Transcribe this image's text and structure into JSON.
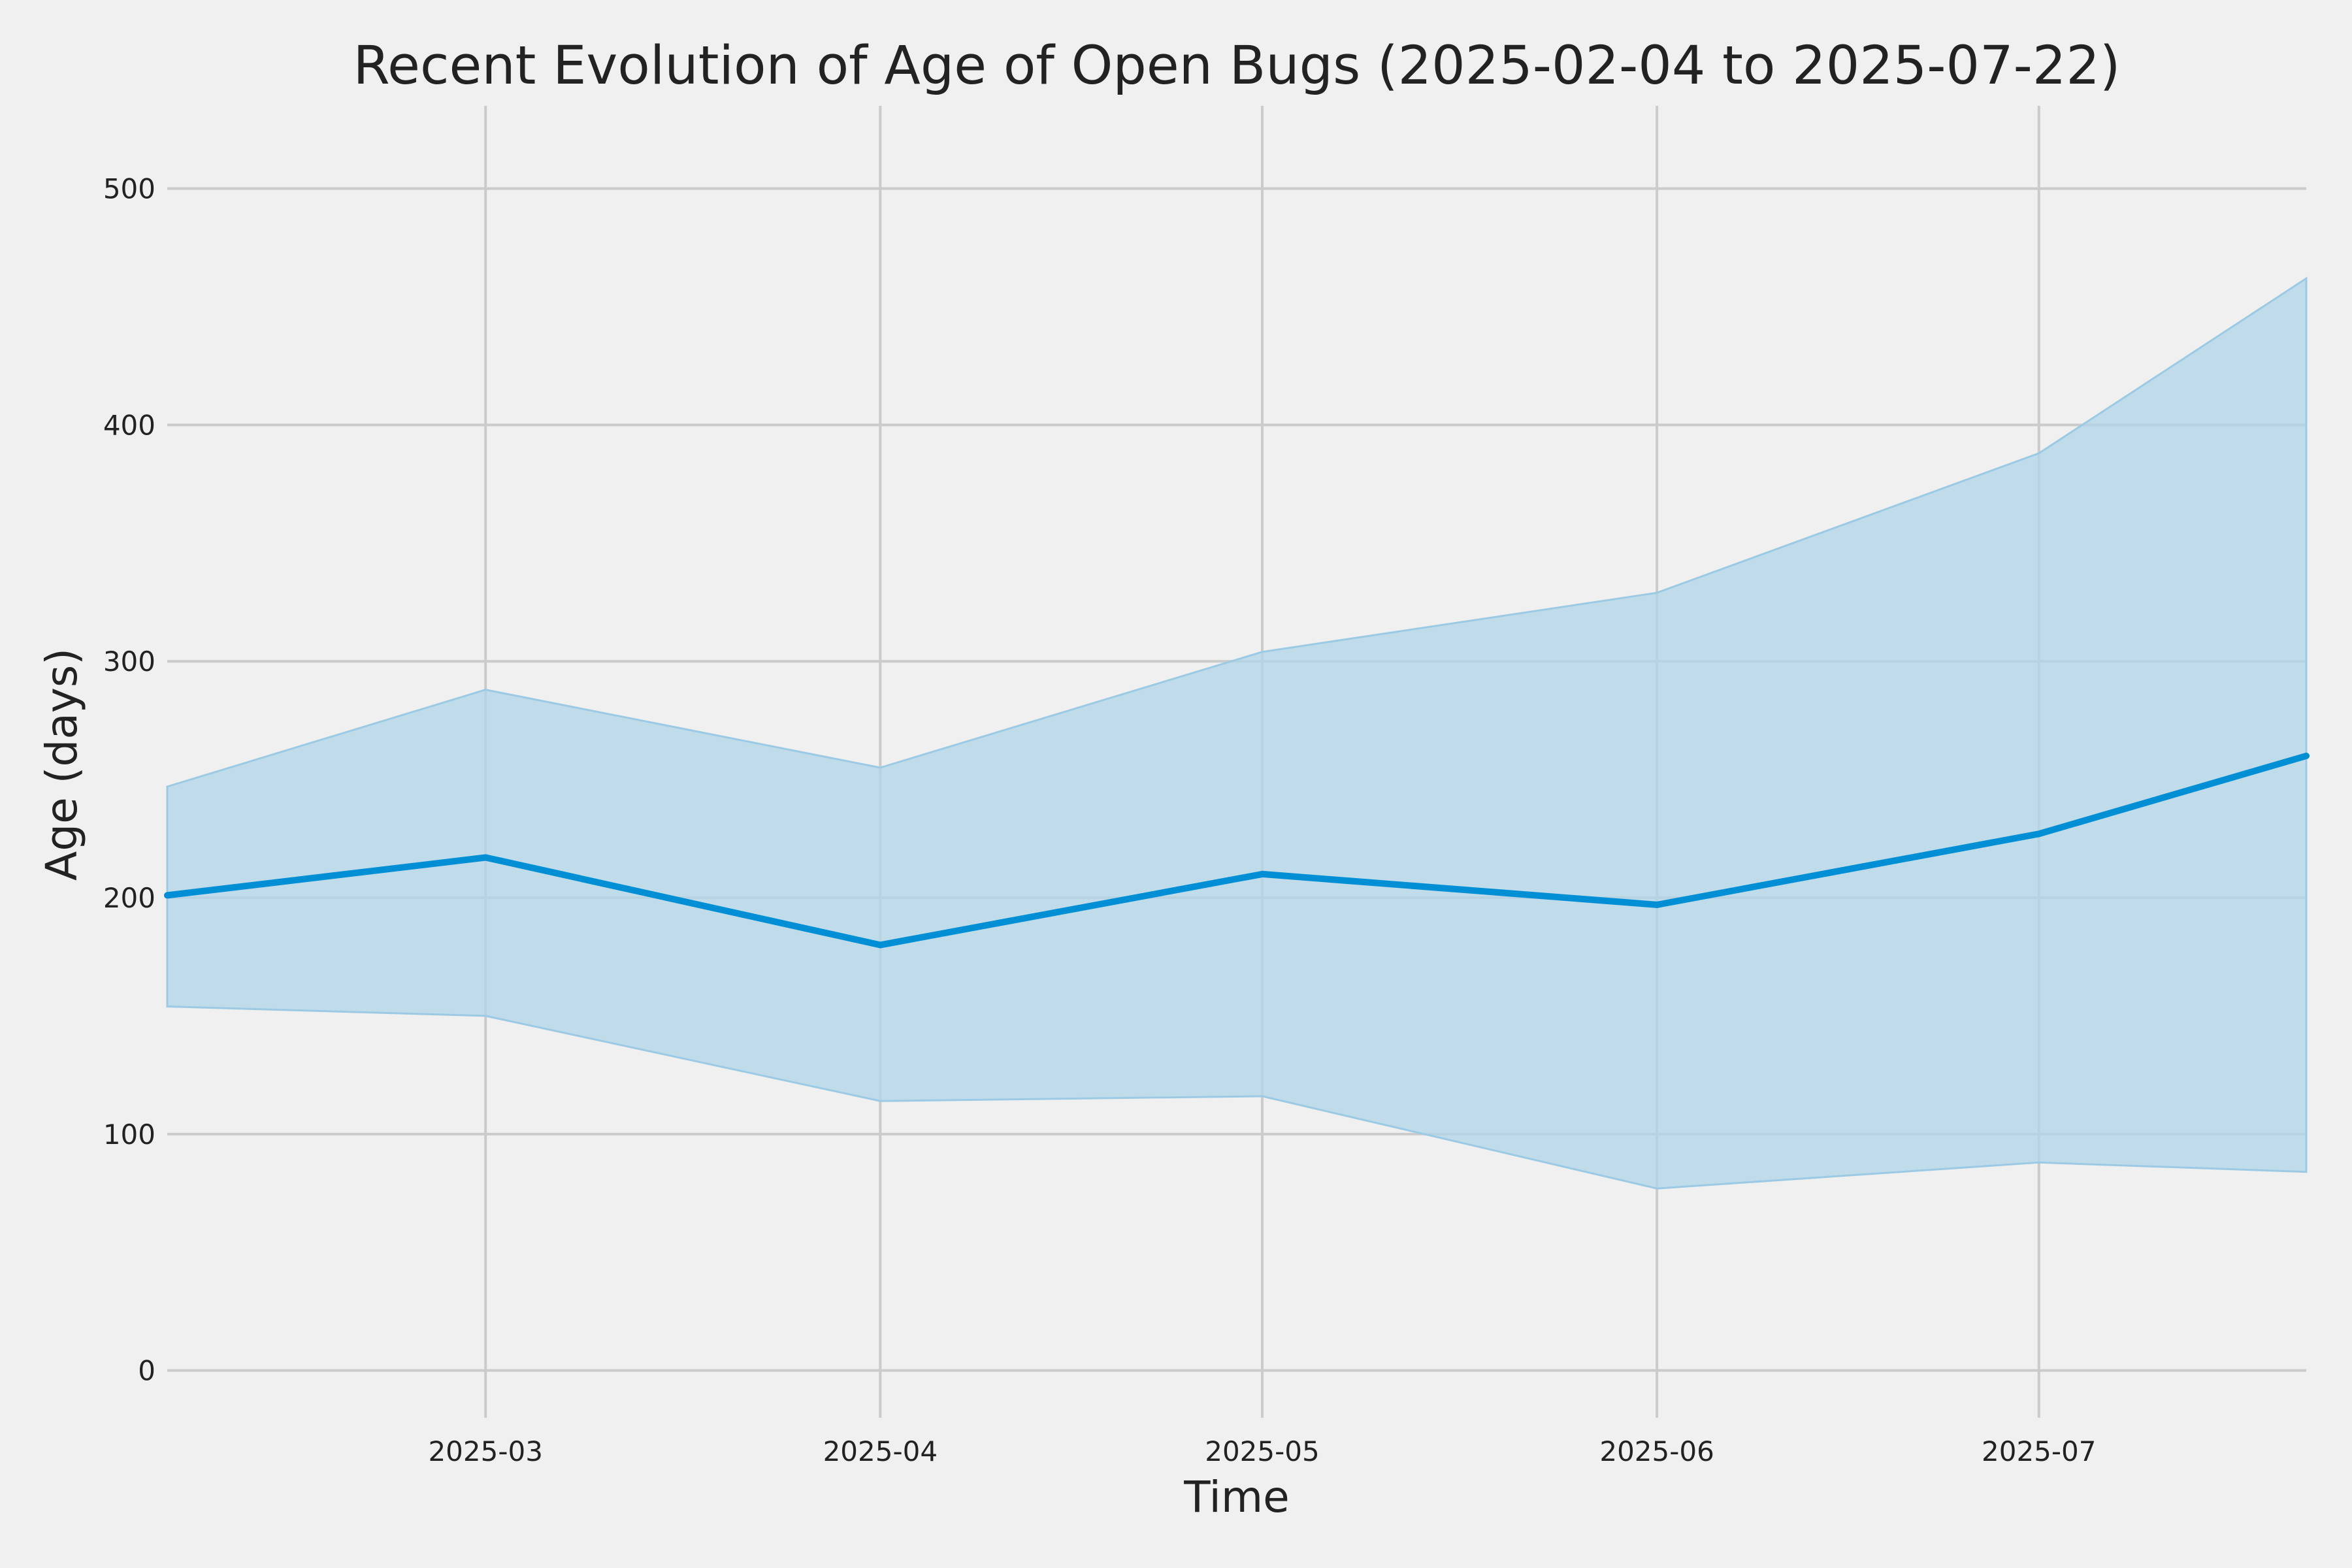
{
  "chart_data": {
    "type": "line",
    "title": "Recent Evolution of Age of Open Bugs (2025-02-04 to 2025-07-22)",
    "xlabel": "Time",
    "ylabel": "Age (days)",
    "xlim": [
      "2025-02-04",
      "2025-07-22"
    ],
    "ylim": [
      -20,
      535
    ],
    "x_ticks": [
      {
        "date": "2025-03-01",
        "label": "2025-03"
      },
      {
        "date": "2025-04-01",
        "label": "2025-04"
      },
      {
        "date": "2025-05-01",
        "label": "2025-05"
      },
      {
        "date": "2025-06-01",
        "label": "2025-06"
      },
      {
        "date": "2025-07-01",
        "label": "2025-07"
      }
    ],
    "y_ticks": [
      0,
      100,
      200,
      300,
      400,
      500
    ],
    "grid": true,
    "legend": "none",
    "x": [
      "2025-02-04",
      "2025-03-01",
      "2025-04-01",
      "2025-05-01",
      "2025-06-01",
      "2025-07-01",
      "2025-07-22"
    ],
    "series": [
      {
        "values": [
          201,
          217,
          180,
          210,
          197,
          227,
          260
        ]
      }
    ],
    "band": {
      "lower": [
        154,
        150,
        114,
        116,
        77,
        88,
        84
      ],
      "upper": [
        247,
        288,
        255,
        304,
        329,
        388,
        462
      ]
    },
    "colors": {
      "line": "#008fd5",
      "band": "#b0d5ea",
      "band_edge": "#9ccae4",
      "grid": "#cbcbcb",
      "background": "#f0f0f0",
      "text": "#222222"
    }
  }
}
